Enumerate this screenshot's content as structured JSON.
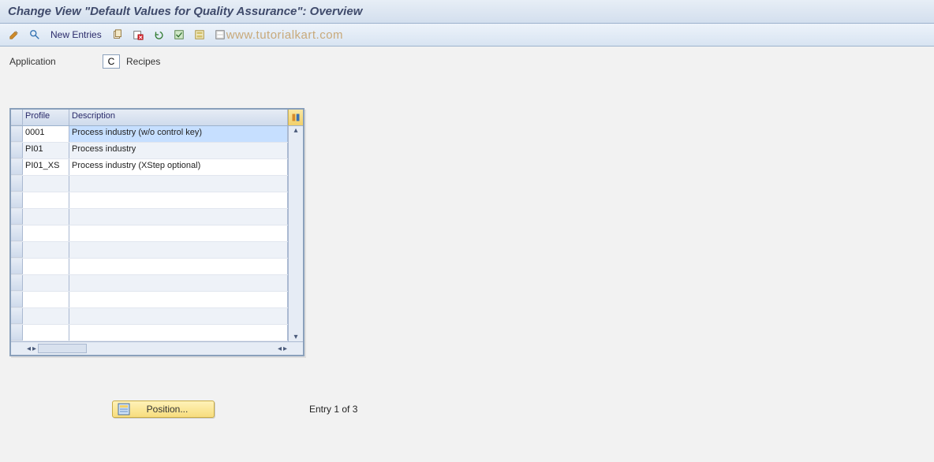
{
  "title": "Change View \"Default Values for Quality Assurance\": Overview",
  "toolbar": {
    "new_entries": "New Entries"
  },
  "watermark": "www.tutorialkart.com",
  "field": {
    "label": "Application",
    "value": "C",
    "desc": "Recipes"
  },
  "grid": {
    "columns": {
      "profile": "Profile",
      "description": "Description"
    },
    "rows": [
      {
        "profile": "0001",
        "description": "Process industry (w/o control key)",
        "selected": true
      },
      {
        "profile": "PI01",
        "description": "Process industry",
        "selected": false
      },
      {
        "profile": "PI01_XS",
        "description": "Process industry (XStep optional)",
        "selected": false
      }
    ],
    "empty_rows": 10
  },
  "position": {
    "label": "Position..."
  },
  "status": "Entry 1 of 3",
  "colors": {
    "title_text": "#3f4a6b",
    "header_grad_top": "#e7eef6",
    "header_grad_bot": "#d3dfee",
    "toolbar_grad_top": "#edf3fa",
    "toolbar_grad_bot": "#d8e4f2",
    "border": "#9cb2cc",
    "grid_border": "#8aa0bb",
    "row_selected": "#c6dfff",
    "position_bg_top": "#fff2b8",
    "position_bg_bot": "#f7dd7d",
    "watermark": "#c8a97a"
  }
}
